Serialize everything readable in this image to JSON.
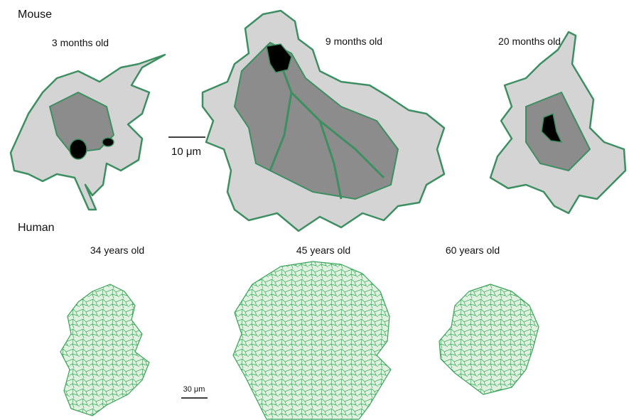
{
  "mouse": {
    "label": "Mouse",
    "panels": [
      "3 months old",
      "9 months old",
      "20 months old"
    ],
    "scale_bar": "10 μm"
  },
  "human": {
    "label": "Human",
    "panels": [
      "34 years old",
      "45 years old",
      "60 years old"
    ],
    "scale_bar": "30 μm"
  }
}
